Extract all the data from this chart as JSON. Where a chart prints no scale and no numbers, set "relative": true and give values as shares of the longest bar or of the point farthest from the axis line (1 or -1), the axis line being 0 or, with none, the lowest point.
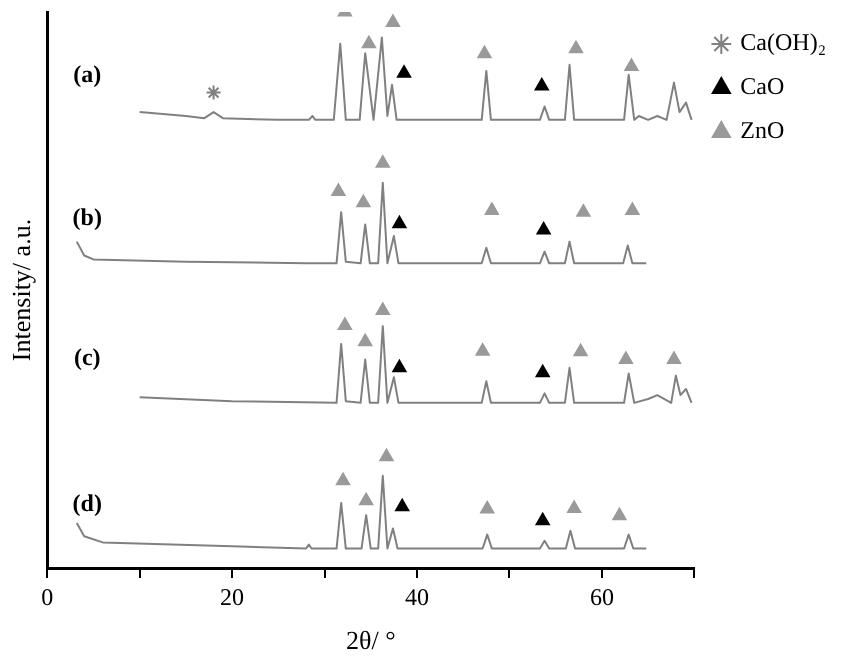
{
  "chart_data": {
    "type": "line",
    "relative": true,
    "xlabel": "2θ/ °",
    "ylabel": "Intensity/ a.u.",
    "xlim": [
      0,
      70
    ],
    "xticks": [
      0,
      {
        "value": 10,
        "label": null
      },
      20,
      {
        "value": 30,
        "label": null
      },
      40,
      {
        "value": 50,
        "label": null
      },
      60,
      {
        "value": 70,
        "label": null
      }
    ],
    "tick_labels": "x",
    "grid": false,
    "legend": "top right",
    "annotations": [
      "(a)",
      "(b)",
      "(c)",
      "(d)"
    ],
    "series": [
      {
        "color": "#808080",
        "marker": "none",
        "x": [
          10,
          15,
          17,
          18,
          19,
          25,
          28.3,
          28.7,
          29,
          31,
          31.7,
          32.3,
          33.8,
          34.4,
          35.3,
          36.2,
          36.8,
          37.3,
          37.8,
          47,
          47.5,
          48,
          53.3,
          53.8,
          54.3,
          56,
          56.5,
          57,
          62.4,
          62.9,
          63.5,
          64,
          65,
          66,
          67,
          67.8,
          68.4,
          69.1,
          69.7
        ],
        "values": [
          0.82,
          0.813,
          0.809,
          0.82,
          0.809,
          0.806,
          0.806,
          0.813,
          0.806,
          0.806,
          0.943,
          0.806,
          0.806,
          0.926,
          0.806,
          0.954,
          0.813,
          0.869,
          0.806,
          0.806,
          0.894,
          0.806,
          0.806,
          0.83,
          0.806,
          0.806,
          0.905,
          0.806,
          0.806,
          0.887,
          0.806,
          0.813,
          0.806,
          0.813,
          0.806,
          0.873,
          0.82,
          0.837,
          0.806
        ]
      },
      {
        "color": "#808080",
        "marker": "none",
        "x": [
          3.2,
          4,
          5,
          15,
          28,
          31.3,
          31.8,
          32.3,
          33.9,
          34.4,
          34.9,
          35.8,
          36.3,
          36.8,
          37.5,
          38,
          47,
          47.5,
          48,
          53.3,
          53.8,
          54.3,
          56,
          56.5,
          57,
          62.3,
          62.8,
          63.3,
          64.8
        ],
        "values": [
          0.587,
          0.562,
          0.555,
          0.551,
          0.548,
          0.548,
          0.64,
          0.551,
          0.548,
          0.618,
          0.548,
          0.548,
          0.693,
          0.548,
          0.597,
          0.548,
          0.548,
          0.576,
          0.548,
          0.548,
          0.569,
          0.548,
          0.548,
          0.587,
          0.548,
          0.548,
          0.58,
          0.548,
          0.548
        ]
      },
      {
        "color": "#808080",
        "marker": "none",
        "x": [
          10,
          20,
          31.3,
          31.8,
          32.3,
          33.9,
          34.4,
          34.9,
          35.8,
          36.3,
          36.8,
          37.5,
          38,
          47,
          47.5,
          48,
          53.3,
          53.8,
          54.3,
          56,
          56.5,
          57,
          62.4,
          62.9,
          63.5,
          65,
          66,
          67.5,
          68,
          68.5,
          69.1,
          69.7
        ],
        "values": [
          0.307,
          0.3,
          0.297,
          0.403,
          0.3,
          0.297,
          0.375,
          0.297,
          0.297,
          0.435,
          0.297,
          0.343,
          0.297,
          0.297,
          0.336,
          0.297,
          0.297,
          0.314,
          0.297,
          0.297,
          0.36,
          0.297,
          0.297,
          0.35,
          0.297,
          0.304,
          0.311,
          0.297,
          0.346,
          0.311,
          0.322,
          0.297
        ]
      },
      {
        "color": "#808080",
        "marker": "none",
        "x": [
          3.2,
          4,
          6,
          20,
          28,
          28.3,
          28.6,
          31.3,
          31.8,
          32.3,
          34,
          34.5,
          35,
          35.8,
          36.3,
          36.8,
          37.4,
          37.9,
          47.1,
          47.6,
          48.1,
          53.3,
          53.8,
          54.3,
          56.1,
          56.6,
          57.1,
          62.4,
          62.9,
          63.4,
          64.8
        ],
        "values": [
          0.081,
          0.057,
          0.046,
          0.039,
          0.035,
          0.042,
          0.035,
          0.035,
          0.117,
          0.035,
          0.035,
          0.095,
          0.035,
          0.035,
          0.166,
          0.035,
          0.071,
          0.035,
          0.035,
          0.06,
          0.035,
          0.035,
          0.049,
          0.035,
          0.035,
          0.067,
          0.035,
          0.035,
          0.06,
          0.035,
          0.035
        ]
      },
      {
        "type": "scatter",
        "name": "Ca(OH)₂",
        "color": "#808080",
        "marker": "cross",
        "x": [
          18
        ],
        "values": [
          0.855
        ]
      },
      {
        "type": "scatter",
        "name": "CaO",
        "color": "#000000",
        "marker": "triangle",
        "x": [
          38.6,
          53.5,
          38.1,
          53.7,
          38.1,
          53.6,
          38.4,
          53.6
        ],
        "values": [
          0.89,
          0.867,
          0.619,
          0.608,
          0.36,
          0.351,
          0.11,
          0.085
        ]
      },
      {
        "type": "scatter",
        "name": "ZnO",
        "color": "#9a9a9a",
        "marker": "triangle",
        "x": [
          32.2,
          34.8,
          37.4,
          47.3,
          57.2,
          63.2,
          31.5,
          34.2,
          36.3,
          48.1,
          58,
          63.3,
          32.2,
          34.4,
          36.3,
          47.1,
          57.7,
          62.6,
          67.8,
          32,
          34.5,
          36.7,
          47.6,
          57,
          61.9
        ],
        "values": [
          1,
          0.943,
          0.981,
          0.925,
          0.934,
          0.902,
          0.677,
          0.657,
          0.728,
          0.643,
          0.64,
          0.643,
          0.436,
          0.407,
          0.463,
          0.39,
          0.389,
          0.375,
          0.375,
          0.157,
          0.121,
          0.2,
          0.106,
          0.107,
          0.094
        ]
      }
    ]
  }
}
